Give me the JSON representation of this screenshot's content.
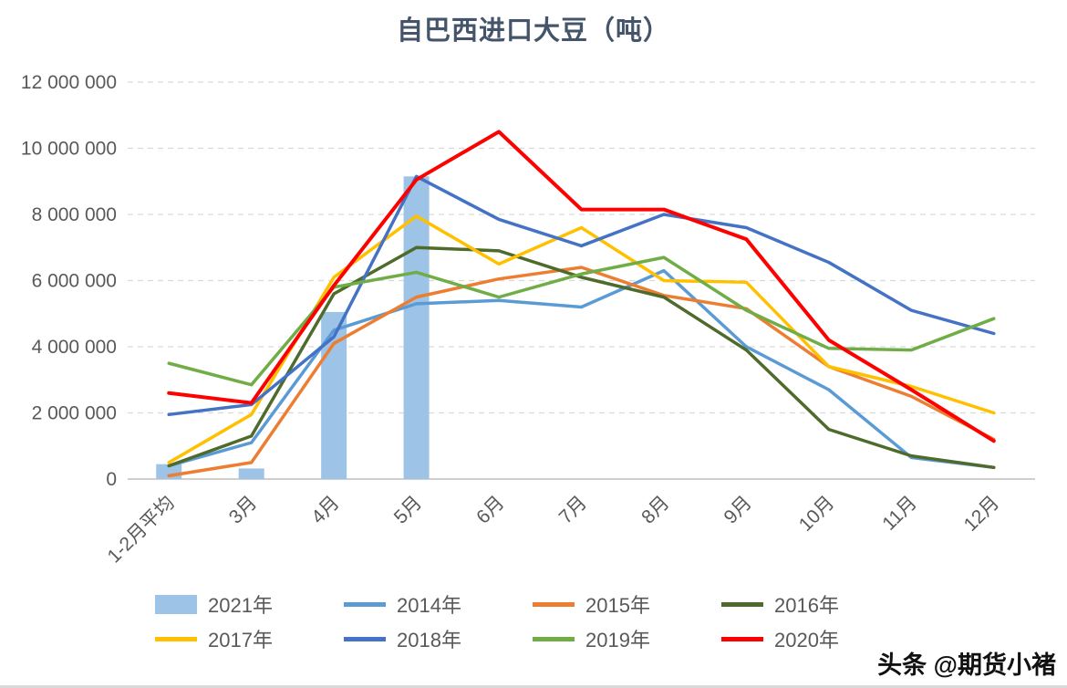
{
  "chart_data": {
    "type": "line",
    "title": "自巴西进口大豆（吨）",
    "categories": [
      "1-2月平均",
      "3月",
      "4月",
      "5月",
      "6月",
      "7月",
      "8月",
      "9月",
      "10月",
      "11月",
      "12月"
    ],
    "ylim": [
      0,
      12000000
    ],
    "yticks": [
      0,
      2000000,
      4000000,
      6000000,
      8000000,
      10000000,
      12000000
    ],
    "grid": "horizontal-dashed",
    "legend_position": "bottom",
    "series": [
      {
        "name": "2021年",
        "type": "bar",
        "color": "#9DC3E6",
        "values": [
          450000,
          320000,
          5050000,
          9150000,
          null,
          null,
          null,
          null,
          null,
          null,
          null
        ]
      },
      {
        "name": "2014年",
        "type": "line",
        "color": "#5B9BD5",
        "values": [
          400000,
          1100000,
          4500000,
          5300000,
          5400000,
          5200000,
          6300000,
          4000000,
          2700000,
          650000,
          350000
        ]
      },
      {
        "name": "2015年",
        "type": "line",
        "color": "#ED7D31",
        "values": [
          100000,
          500000,
          4100000,
          5500000,
          6050000,
          6400000,
          5550000,
          5150000,
          3400000,
          2500000,
          1200000
        ]
      },
      {
        "name": "2016年",
        "type": "line",
        "color": "#4E6B2B",
        "values": [
          400000,
          1300000,
          5600000,
          7000000,
          6900000,
          6100000,
          5500000,
          3900000,
          1500000,
          700000,
          350000
        ]
      },
      {
        "name": "2017年",
        "type": "line",
        "color": "#FFC000",
        "values": [
          500000,
          1950000,
          6100000,
          7950000,
          6500000,
          7600000,
          6000000,
          5950000,
          3400000,
          2800000,
          2000000
        ]
      },
      {
        "name": "2018年",
        "type": "line",
        "color": "#4472C4",
        "values": [
          1950000,
          2250000,
          4300000,
          9150000,
          7850000,
          7050000,
          8000000,
          7600000,
          6550000,
          5100000,
          4400000
        ]
      },
      {
        "name": "2019年",
        "type": "line",
        "color": "#70AD47",
        "values": [
          3500000,
          2850000,
          5800000,
          6250000,
          5500000,
          6200000,
          6700000,
          5100000,
          3950000,
          3900000,
          4850000
        ]
      },
      {
        "name": "2020年",
        "type": "line",
        "color": "#FF0000",
        "values": [
          2600000,
          2300000,
          5850000,
          9050000,
          10500000,
          8150000,
          8150000,
          7250000,
          4200000,
          2700000,
          1150000
        ]
      }
    ]
  },
  "watermark": {
    "text": "头条 @期货小褚"
  },
  "colors": {
    "title": "#44546A",
    "axis_label": "#595959",
    "gridline": "#D9D9D9",
    "axis_line": "#BFBFBF"
  }
}
